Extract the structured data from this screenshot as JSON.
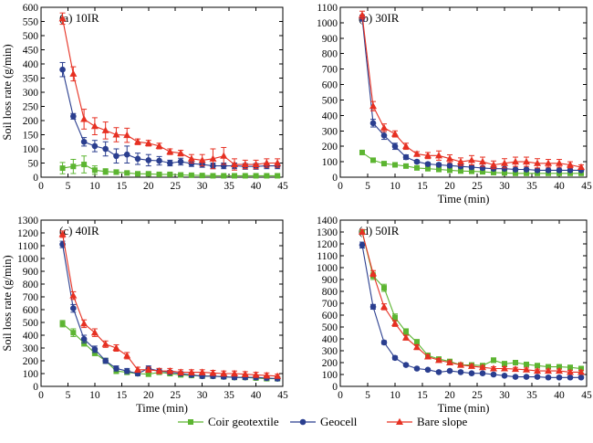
{
  "chart_data": [
    {
      "type": "line",
      "title": "(a) 10IR",
      "xlabel": "",
      "ylabel": "Soil loss rate (g/min)",
      "xlim": [
        0,
        45
      ],
      "ylim": [
        0,
        600
      ],
      "xticks": [
        0,
        5,
        10,
        15,
        20,
        25,
        30,
        35,
        40,
        45
      ],
      "yticks": [
        0,
        50,
        100,
        150,
        200,
        250,
        300,
        350,
        400,
        450,
        500,
        550,
        600
      ],
      "x": [
        4,
        6,
        8,
        10,
        12,
        14,
        16,
        18,
        20,
        22,
        24,
        26,
        28,
        30,
        32,
        34,
        36,
        38,
        40,
        42,
        44
      ],
      "series": [
        {
          "name": "Coir geotextile",
          "color": "#5cb531",
          "marker": "square",
          "values": [
            32,
            38,
            45,
            25,
            20,
            18,
            15,
            12,
            12,
            10,
            10,
            8,
            7,
            6,
            5,
            5,
            5,
            5,
            5,
            5,
            5
          ],
          "err": [
            20,
            25,
            30,
            15,
            10,
            8,
            6,
            5,
            5,
            4,
            4,
            3,
            3,
            3,
            2,
            2,
            2,
            2,
            2,
            2,
            2
          ]
        },
        {
          "name": "Geocell",
          "color": "#2a3e8f",
          "marker": "circle",
          "values": [
            380,
            215,
            125,
            110,
            100,
            75,
            80,
            65,
            60,
            58,
            50,
            55,
            48,
            45,
            40,
            40,
            40,
            38,
            38,
            40,
            40
          ],
          "err": [
            25,
            10,
            15,
            20,
            25,
            25,
            30,
            20,
            20,
            15,
            10,
            12,
            10,
            10,
            10,
            10,
            10,
            10,
            10,
            10,
            10
          ]
        },
        {
          "name": "Bare slope",
          "color": "#e63022",
          "marker": "triangle",
          "values": [
            560,
            365,
            205,
            180,
            165,
            150,
            148,
            125,
            120,
            110,
            90,
            85,
            65,
            60,
            65,
            75,
            45,
            45,
            45,
            50,
            50
          ],
          "err": [
            20,
            25,
            35,
            30,
            30,
            25,
            25,
            10,
            10,
            10,
            10,
            10,
            15,
            20,
            35,
            30,
            20,
            15,
            15,
            15,
            15
          ]
        }
      ]
    },
    {
      "type": "line",
      "title": "(b) 30IR",
      "xlabel": "Time (min)",
      "ylabel": "",
      "xlim": [
        0,
        45
      ],
      "ylim": [
        0,
        1100
      ],
      "xticks": [
        0,
        5,
        10,
        15,
        20,
        25,
        30,
        35,
        40,
        45
      ],
      "yticks": [
        0,
        100,
        200,
        300,
        400,
        500,
        600,
        700,
        800,
        900,
        1000,
        1100
      ],
      "x": [
        4,
        6,
        8,
        10,
        12,
        14,
        16,
        18,
        20,
        22,
        24,
        26,
        28,
        30,
        32,
        34,
        36,
        38,
        40,
        42,
        44
      ],
      "series": [
        {
          "name": "Coir geotextile",
          "color": "#5cb531",
          "marker": "square",
          "values": [
            160,
            110,
            88,
            80,
            72,
            60,
            55,
            50,
            45,
            40,
            38,
            35,
            30,
            28,
            25,
            25,
            25,
            25,
            25,
            25,
            25
          ],
          "err": [
            10,
            8,
            6,
            5,
            5,
            5,
            5,
            5,
            5,
            5,
            4,
            4,
            4,
            3,
            3,
            3,
            3,
            3,
            3,
            3,
            3
          ]
        },
        {
          "name": "Geocell",
          "color": "#2a3e8f",
          "marker": "circle",
          "values": [
            1030,
            350,
            270,
            200,
            130,
            100,
            85,
            80,
            75,
            70,
            65,
            60,
            55,
            55,
            50,
            50,
            45,
            45,
            45,
            45,
            45
          ],
          "err": [
            20,
            25,
            25,
            20,
            15,
            10,
            10,
            10,
            10,
            10,
            8,
            8,
            8,
            8,
            8,
            8,
            8,
            8,
            8,
            8,
            8
          ]
        },
        {
          "name": "Bare slope",
          "color": "#e63022",
          "marker": "triangle",
          "values": [
            1050,
            460,
            320,
            280,
            200,
            150,
            140,
            140,
            120,
            100,
            110,
            100,
            80,
            90,
            100,
            100,
            90,
            90,
            90,
            80,
            65
          ],
          "err": [
            25,
            30,
            25,
            20,
            20,
            15,
            20,
            30,
            25,
            25,
            30,
            30,
            25,
            30,
            30,
            30,
            30,
            25,
            25,
            20,
            15
          ]
        }
      ]
    },
    {
      "type": "line",
      "title": "(c) 40IR",
      "xlabel": "Time (min)",
      "ylabel": "Soil loss rate (g/min)",
      "xlim": [
        0,
        45
      ],
      "ylim": [
        0,
        1300
      ],
      "xticks": [
        0,
        5,
        10,
        15,
        20,
        25,
        30,
        35,
        40,
        45
      ],
      "yticks": [
        0,
        100,
        200,
        300,
        400,
        500,
        600,
        700,
        800,
        900,
        1000,
        1100,
        1200,
        1300
      ],
      "x": [
        4,
        6,
        8,
        10,
        12,
        14,
        16,
        18,
        20,
        22,
        24,
        26,
        28,
        30,
        32,
        34,
        36,
        38,
        40,
        42,
        44
      ],
      "series": [
        {
          "name": "Coir geotextile",
          "color": "#5cb531",
          "marker": "square",
          "values": [
            490,
            420,
            340,
            260,
            200,
            120,
            110,
            100,
            95,
            110,
            100,
            90,
            85,
            80,
            80,
            75,
            70,
            70,
            65,
            60,
            60
          ],
          "err": [
            25,
            30,
            25,
            20,
            20,
            20,
            15,
            15,
            15,
            15,
            15,
            15,
            15,
            15,
            15,
            15,
            15,
            15,
            15,
            15,
            15
          ]
        },
        {
          "name": "Geocell",
          "color": "#2a3e8f",
          "marker": "circle",
          "values": [
            1110,
            610,
            370,
            290,
            200,
            140,
            120,
            100,
            140,
            120,
            110,
            100,
            90,
            80,
            80,
            75,
            70,
            70,
            70,
            65,
            60
          ],
          "err": [
            25,
            30,
            30,
            25,
            20,
            20,
            20,
            15,
            20,
            20,
            15,
            15,
            15,
            15,
            15,
            15,
            15,
            15,
            15,
            15,
            15
          ]
        },
        {
          "name": "Bare slope",
          "color": "#e63022",
          "marker": "triangle",
          "values": [
            1190,
            710,
            490,
            420,
            330,
            300,
            240,
            130,
            130,
            120,
            120,
            110,
            110,
            110,
            105,
            100,
            100,
            95,
            90,
            85,
            80
          ],
          "err": [
            25,
            30,
            30,
            30,
            25,
            25,
            25,
            20,
            20,
            20,
            20,
            20,
            20,
            20,
            20,
            20,
            20,
            20,
            20,
            20,
            15
          ]
        }
      ]
    },
    {
      "type": "line",
      "title": "(d) 50IR",
      "xlabel": "Time (min)",
      "ylabel": "",
      "xlim": [
        0,
        45
      ],
      "ylim": [
        0,
        1400
      ],
      "xticks": [
        0,
        5,
        10,
        15,
        20,
        25,
        30,
        35,
        40,
        45
      ],
      "yticks": [
        0,
        100,
        200,
        300,
        400,
        500,
        600,
        700,
        800,
        900,
        1000,
        1100,
        1200,
        1300,
        1400
      ],
      "x": [
        4,
        6,
        8,
        10,
        12,
        14,
        16,
        18,
        20,
        22,
        24,
        26,
        28,
        30,
        32,
        34,
        36,
        38,
        40,
        42,
        44
      ],
      "series": [
        {
          "name": "Coir geotextile",
          "color": "#5cb531",
          "marker": "square",
          "values": [
            1300,
            930,
            830,
            580,
            460,
            370,
            260,
            230,
            210,
            180,
            180,
            175,
            220,
            190,
            200,
            185,
            175,
            165,
            165,
            160,
            150
          ],
          "err": [
            20,
            30,
            30,
            30,
            25,
            25,
            20,
            15,
            15,
            15,
            15,
            15,
            20,
            20,
            15,
            15,
            15,
            15,
            15,
            15,
            15
          ]
        },
        {
          "name": "Geocell",
          "color": "#2a3e8f",
          "marker": "circle",
          "values": [
            1190,
            670,
            370,
            240,
            180,
            150,
            140,
            120,
            130,
            120,
            110,
            110,
            100,
            90,
            80,
            80,
            80,
            75,
            75,
            75,
            75
          ],
          "err": [
            25,
            20,
            15,
            15,
            10,
            10,
            10,
            10,
            10,
            10,
            10,
            10,
            10,
            10,
            10,
            10,
            10,
            10,
            10,
            10,
            10
          ]
        },
        {
          "name": "Bare slope",
          "color": "#e63022",
          "marker": "triangle",
          "values": [
            1300,
            950,
            670,
            530,
            410,
            330,
            250,
            220,
            200,
            180,
            170,
            160,
            150,
            150,
            145,
            140,
            130,
            130,
            130,
            120,
            120
          ],
          "err": [
            20,
            25,
            25,
            25,
            20,
            20,
            15,
            15,
            15,
            15,
            15,
            15,
            15,
            15,
            15,
            15,
            15,
            15,
            15,
            15,
            15
          ]
        }
      ]
    }
  ],
  "legend": {
    "position": "bottom-center",
    "items": [
      {
        "label": "Coir geotextile",
        "color": "#5cb531",
        "marker": "square"
      },
      {
        "label": "Geocell",
        "color": "#2a3e8f",
        "marker": "circle"
      },
      {
        "label": "Bare slope",
        "color": "#e63022",
        "marker": "triangle"
      }
    ]
  }
}
